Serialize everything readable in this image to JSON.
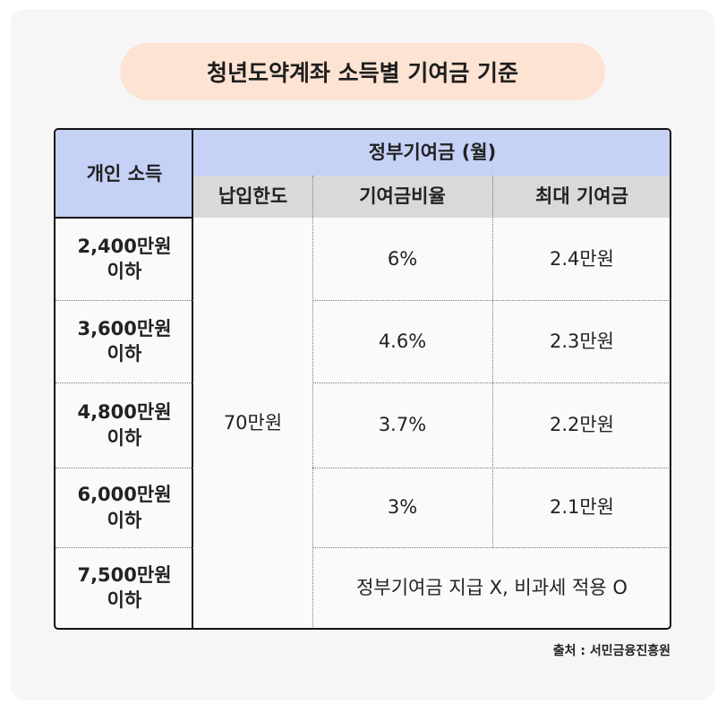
{
  "title": "청년도약계좌 소득별 기여금 기준",
  "table": {
    "col_income": "개인 소득",
    "group_header": "정부기여금 (월)",
    "col_limit": "납입한도",
    "col_rate": "기여금비율",
    "col_max": "최대 기여금",
    "limit_value": "70만원",
    "rows": [
      {
        "income_line1": "2,400만원",
        "income_line2": "이하",
        "rate": "6%",
        "max": "2.4만원"
      },
      {
        "income_line1": "3,600만원",
        "income_line2": "이하",
        "rate": "4.6%",
        "max": "2.3만원"
      },
      {
        "income_line1": "4,800만원",
        "income_line2": "이하",
        "rate": "3.7%",
        "max": "2.2만원"
      },
      {
        "income_line1": "6,000만원",
        "income_line2": "이하",
        "rate": "3%",
        "max": "2.1만원"
      },
      {
        "income_line1": "7,500만원",
        "income_line2": "이하",
        "note": "정부기여금 지급 X, 비과세 적용 O"
      }
    ]
  },
  "source": "출처 : 서민금융진흥원",
  "colors": {
    "title_bg": "#fde3d3",
    "header_lavender": "#c6d1f6",
    "header_grey": "#d9d9d9",
    "card_bg": "#f6f6f6"
  }
}
